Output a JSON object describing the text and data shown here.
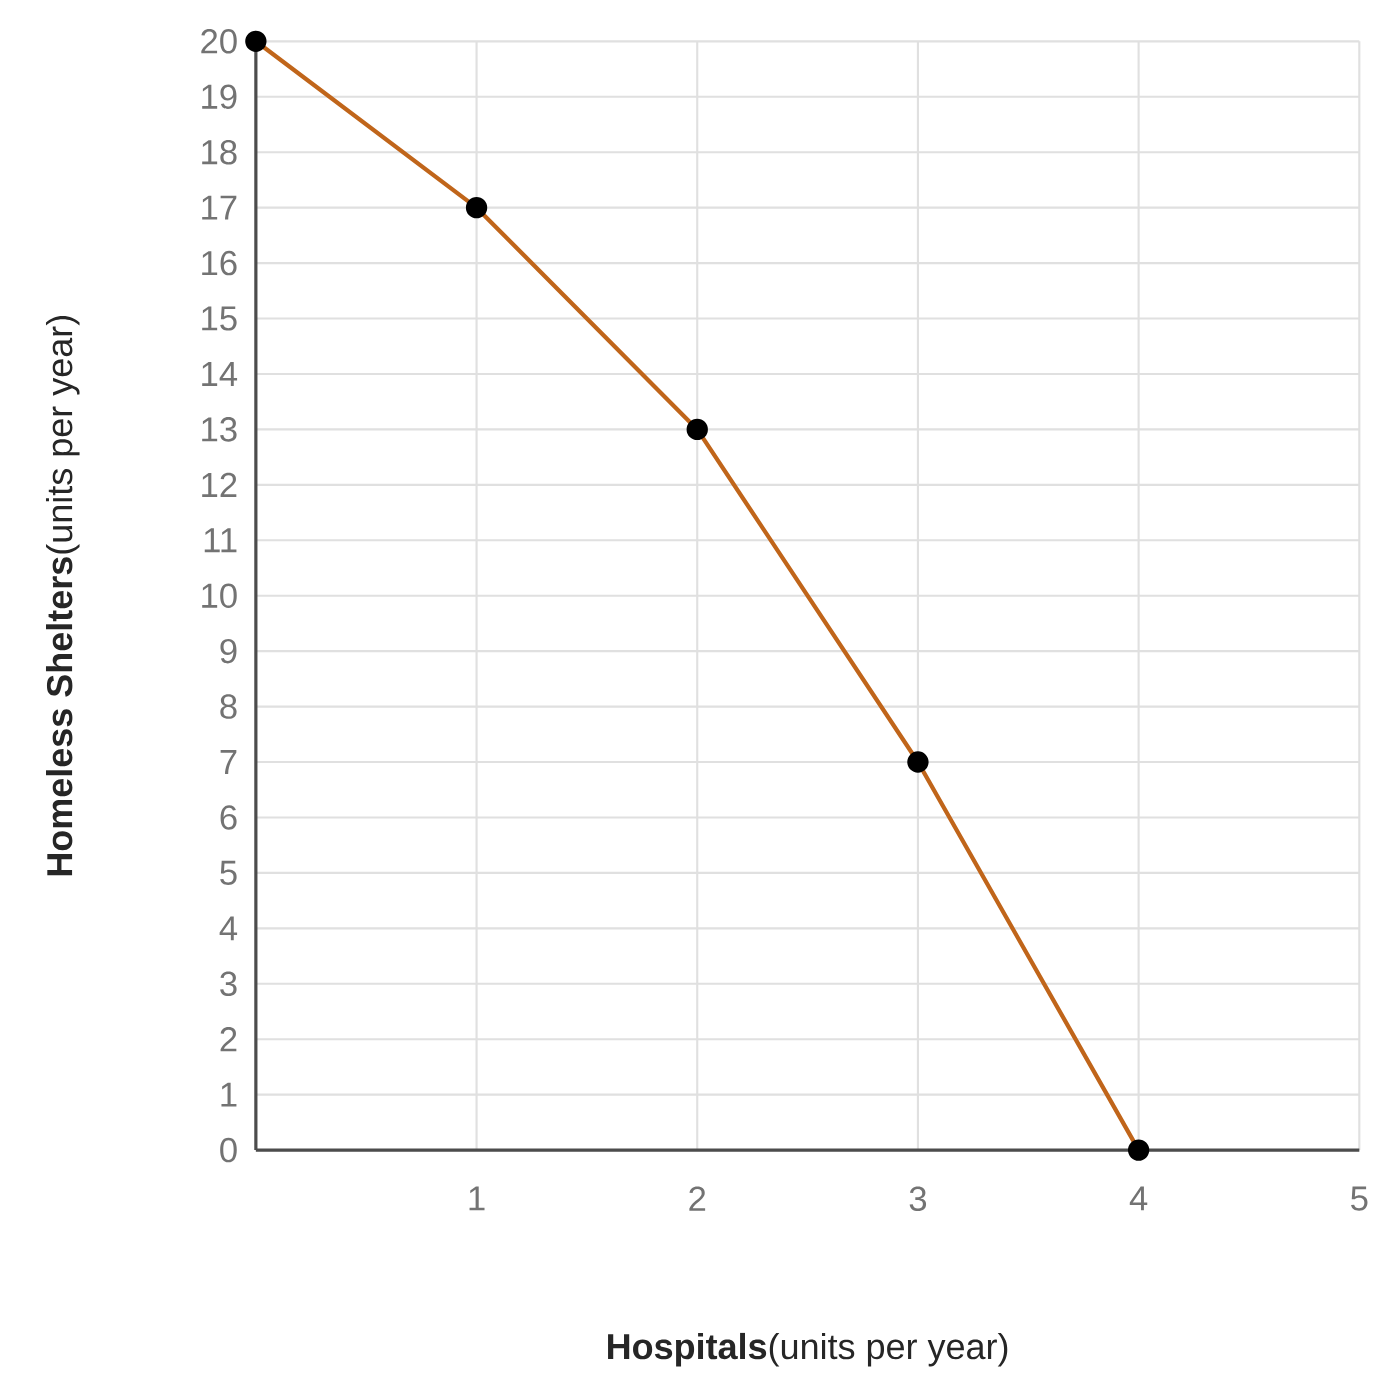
{
  "chart_data": {
    "type": "line",
    "xlabel": "**Hospitals**(units per year)",
    "ylabel": "**Homeless Shelters**(units per year)",
    "x": [
      0,
      1,
      2,
      3,
      4
    ],
    "series": [
      {
        "color": "#c0651a",
        "values": [
          20,
          17,
          13,
          7,
          0
        ]
      }
    ],
    "xlim": [
      0,
      5
    ],
    "ylim": [
      0,
      20
    ],
    "xticks": [
      1,
      2,
      3,
      4,
      5
    ],
    "yticks": [
      0,
      1,
      2,
      3,
      4,
      5,
      6,
      7,
      8,
      9,
      10,
      11,
      12,
      13,
      14,
      15,
      16,
      17,
      18,
      19,
      20
    ],
    "grid": true,
    "marker": "circle",
    "line_style": "solid"
  }
}
